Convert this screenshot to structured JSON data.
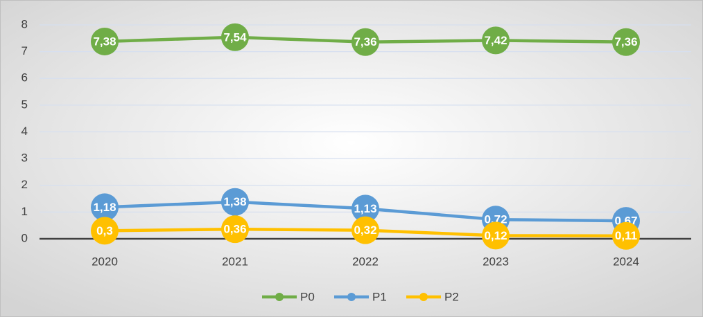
{
  "chart_data": {
    "type": "line",
    "categories": [
      "2020",
      "2021",
      "2022",
      "2023",
      "2024"
    ],
    "series": [
      {
        "name": "P0",
        "color": "#70ad47",
        "values": [
          7.38,
          7.54,
          7.36,
          7.42,
          7.36
        ],
        "value_labels": [
          "7,38",
          "7,54",
          "7,36",
          "7,42",
          "7,36"
        ]
      },
      {
        "name": "P1",
        "color": "#5b9bd5",
        "values": [
          1.18,
          1.38,
          1.13,
          0.72,
          0.67
        ],
        "value_labels": [
          "1,18",
          "1,38",
          "1,13",
          "0,72",
          "0,67"
        ]
      },
      {
        "name": "P2",
        "color": "#ffc000",
        "values": [
          0.3,
          0.36,
          0.32,
          0.12,
          0.11
        ],
        "value_labels": [
          "0,3",
          "0,36",
          "0,32",
          "0,12",
          "0,11"
        ]
      }
    ],
    "ylim": [
      0,
      8
    ],
    "yticks": [
      0,
      1,
      2,
      3,
      4,
      5,
      6,
      7,
      8
    ],
    "grid": true,
    "legend": "bottom"
  }
}
